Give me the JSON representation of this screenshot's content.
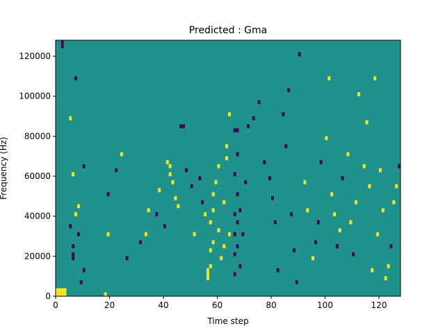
{
  "chart_data": {
    "type": "heatmap",
    "title": "Predicted : Gma",
    "xlabel": "Time step",
    "ylabel": "Frequency (Hz)",
    "xlim": [
      0,
      128
    ],
    "ylim": [
      0,
      128000
    ],
    "xticks": [
      0,
      20,
      40,
      60,
      80,
      100,
      120
    ],
    "yticks": [
      0,
      20000,
      40000,
      60000,
      80000,
      100000,
      120000
    ],
    "xtick_labels": [
      "0",
      "20",
      "40",
      "60",
      "80",
      "100",
      "120"
    ],
    "ytick_labels": [
      "0",
      "20000",
      "40000",
      "60000",
      "80000",
      "100000",
      "120000"
    ],
    "grid": false,
    "background_value": 0.5,
    "value_colors": {
      "low": "#440154",
      "mid": "#21918c",
      "high": "#fde725"
    },
    "bin_size": {
      "time": 1,
      "frequency": 2000
    },
    "cells": [
      [
        0,
        2000,
        1
      ],
      [
        1,
        2000,
        1
      ],
      [
        2,
        2000,
        1
      ],
      [
        3,
        2000,
        1
      ],
      [
        0,
        0,
        1
      ],
      [
        1,
        0,
        1
      ],
      [
        2,
        0,
        1
      ],
      [
        3,
        0,
        1
      ],
      [
        2,
        126000,
        0
      ],
      [
        2,
        124000,
        0
      ],
      [
        5,
        34000,
        0
      ],
      [
        6,
        24000,
        0
      ],
      [
        6,
        20000,
        0
      ],
      [
        6,
        18000,
        0
      ],
      [
        5,
        88000,
        1
      ],
      [
        6,
        60000,
        1
      ],
      [
        7,
        108000,
        0
      ],
      [
        7,
        40000,
        1
      ],
      [
        8,
        44000,
        1
      ],
      [
        8,
        30000,
        0
      ],
      [
        9,
        6000,
        0
      ],
      [
        10,
        12000,
        0
      ],
      [
        10,
        64000,
        0
      ],
      [
        18,
        0,
        1
      ],
      [
        19,
        30000,
        1
      ],
      [
        19,
        50000,
        0
      ],
      [
        22,
        62000,
        0
      ],
      [
        24,
        70000,
        1
      ],
      [
        26,
        18000,
        0
      ],
      [
        31,
        26000,
        0
      ],
      [
        33,
        30000,
        1
      ],
      [
        34,
        42000,
        1
      ],
      [
        37,
        40000,
        0
      ],
      [
        38,
        52000,
        1
      ],
      [
        40,
        34000,
        0
      ],
      [
        41,
        66000,
        1
      ],
      [
        42,
        64000,
        1
      ],
      [
        42,
        60000,
        1
      ],
      [
        43,
        56000,
        1
      ],
      [
        44,
        48000,
        1
      ],
      [
        45,
        44000,
        1
      ],
      [
        46,
        84000,
        0
      ],
      [
        47,
        84000,
        0
      ],
      [
        48,
        62000,
        0
      ],
      [
        50,
        54000,
        0
      ],
      [
        51,
        30000,
        1
      ],
      [
        53,
        58000,
        0
      ],
      [
        54,
        46000,
        0
      ],
      [
        55,
        40000,
        1
      ],
      [
        56,
        8000,
        1
      ],
      [
        56,
        10000,
        1
      ],
      [
        56,
        12000,
        1
      ],
      [
        57,
        14000,
        1
      ],
      [
        57,
        22000,
        1
      ],
      [
        57,
        36000,
        1
      ],
      [
        58,
        26000,
        1
      ],
      [
        58,
        42000,
        1
      ],
      [
        58,
        50000,
        1
      ],
      [
        59,
        56000,
        1
      ],
      [
        60,
        64000,
        1
      ],
      [
        60,
        32000,
        1
      ],
      [
        61,
        18000,
        1
      ],
      [
        62,
        24000,
        1
      ],
      [
        62,
        46000,
        1
      ],
      [
        63,
        68000,
        1
      ],
      [
        63,
        74000,
        1
      ],
      [
        64,
        30000,
        1
      ],
      [
        64,
        90000,
        1
      ],
      [
        66,
        82000,
        0
      ],
      [
        67,
        82000,
        0
      ],
      [
        66,
        60000,
        0
      ],
      [
        66,
        40000,
        0
      ],
      [
        66,
        30000,
        0
      ],
      [
        66,
        20000,
        0
      ],
      [
        66,
        10000,
        0
      ],
      [
        67,
        70000,
        0
      ],
      [
        67,
        50000,
        0
      ],
      [
        67,
        36000,
        0
      ],
      [
        67,
        24000,
        0
      ],
      [
        68,
        42000,
        0
      ],
      [
        68,
        14000,
        0
      ],
      [
        69,
        30000,
        0
      ],
      [
        70,
        56000,
        0
      ],
      [
        71,
        84000,
        0
      ],
      [
        73,
        88000,
        0
      ],
      [
        75,
        96000,
        0
      ],
      [
        77,
        66000,
        0
      ],
      [
        79,
        58000,
        0
      ],
      [
        80,
        48000,
        0
      ],
      [
        81,
        36000,
        0
      ],
      [
        82,
        12000,
        0
      ],
      [
        84,
        90000,
        0
      ],
      [
        85,
        74000,
        0
      ],
      [
        86,
        102000,
        0
      ],
      [
        87,
        40000,
        0
      ],
      [
        88,
        22000,
        0
      ],
      [
        89,
        6000,
        0
      ],
      [
        90,
        120000,
        0
      ],
      [
        92,
        56000,
        1
      ],
      [
        93,
        42000,
        1
      ],
      [
        95,
        18000,
        1
      ],
      [
        96,
        26000,
        0
      ],
      [
        97,
        36000,
        0
      ],
      [
        98,
        66000,
        0
      ],
      [
        100,
        78000,
        1
      ],
      [
        101,
        108000,
        1
      ],
      [
        102,
        50000,
        1
      ],
      [
        103,
        40000,
        1
      ],
      [
        104,
        24000,
        0
      ],
      [
        105,
        32000,
        1
      ],
      [
        106,
        58000,
        0
      ],
      [
        108,
        70000,
        1
      ],
      [
        109,
        36000,
        1
      ],
      [
        110,
        20000,
        0
      ],
      [
        111,
        46000,
        1
      ],
      [
        112,
        100000,
        1
      ],
      [
        114,
        64000,
        1
      ],
      [
        115,
        86000,
        1
      ],
      [
        116,
        54000,
        1
      ],
      [
        117,
        12000,
        1
      ],
      [
        118,
        108000,
        1
      ],
      [
        119,
        30000,
        1
      ],
      [
        120,
        62000,
        1
      ],
      [
        121,
        42000,
        1
      ],
      [
        122,
        8000,
        1
      ],
      [
        123,
        14000,
        1
      ],
      [
        124,
        24000,
        0
      ],
      [
        125,
        46000,
        1
      ],
      [
        126,
        54000,
        1
      ],
      [
        127,
        64000,
        0
      ]
    ]
  }
}
